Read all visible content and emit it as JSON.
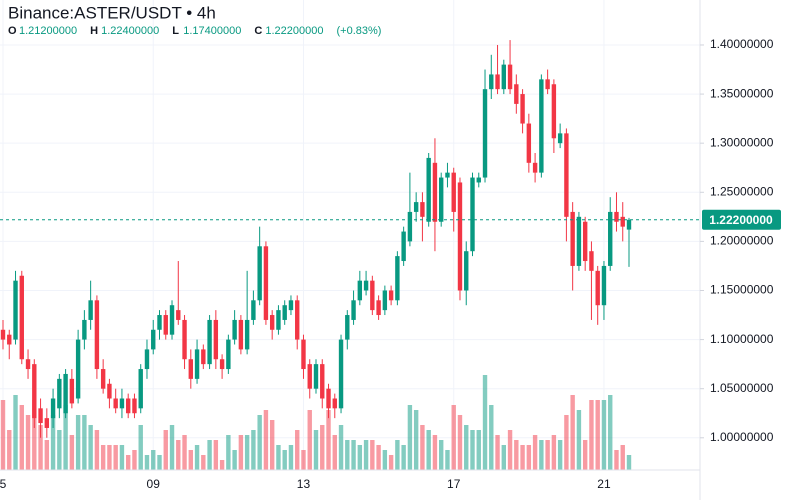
{
  "chart_data": {
    "type": "candlestick",
    "title": "Binance:ASTER/USDT • 4h",
    "ohlc_header": [
      {
        "key": "O",
        "value": "1.21200000"
      },
      {
        "key": "H",
        "value": "1.22400000"
      },
      {
        "key": "L",
        "value": "1.17400000"
      },
      {
        "key": "C",
        "value": "1.22200000"
      }
    ],
    "change": "(+0.83%)",
    "categories": [
      "5",
      null,
      null,
      null,
      null,
      null,
      null,
      null,
      null,
      null,
      null,
      null,
      null,
      null,
      null,
      null,
      null,
      null,
      null,
      null,
      null,
      null,
      null,
      null,
      "09",
      null,
      null,
      null,
      null,
      null,
      null,
      null,
      null,
      null,
      null,
      null,
      null,
      null,
      null,
      null,
      null,
      null,
      null,
      null,
      null,
      null,
      null,
      null,
      "13",
      null,
      null,
      null,
      null,
      null,
      null,
      null,
      null,
      null,
      null,
      null,
      null,
      null,
      null,
      null,
      null,
      null,
      null,
      null,
      null,
      null,
      null,
      null,
      "17",
      null,
      null,
      null,
      null,
      null,
      null,
      null,
      null,
      null,
      null,
      null,
      null,
      null,
      null,
      null,
      null,
      null,
      null,
      null,
      null,
      null,
      null,
      null,
      "21",
      null,
      null,
      null,
      null
    ],
    "open": [
      1.11,
      1.105,
      1.1,
      1.165,
      1.08,
      1.075,
      1.03,
      1.02,
      1.02,
      1.03,
      1.025,
      1.06,
      1.04,
      1.1,
      1.12,
      1.14,
      1.07,
      1.055,
      1.04,
      1.03,
      1.04,
      1.04,
      1.03,
      1.07,
      1.09,
      1.11,
      1.125,
      1.105,
      1.13,
      1.12,
      1.08,
      1.06,
      1.09,
      1.075,
      1.12,
      1.08,
      1.07,
      1.1,
      1.12,
      1.09,
      1.12,
      1.14,
      1.195,
      1.125,
      1.11,
      1.12,
      1.13,
      1.14,
      1.1,
      1.075,
      1.05,
      1.075,
      1.05,
      1.04,
      1.03,
      1.1,
      1.12,
      1.14,
      1.15,
      1.16,
      1.14,
      1.13,
      1.15,
      1.14,
      1.18,
      1.2,
      1.23,
      1.24,
      1.22,
      1.28,
      1.22,
      1.265,
      1.27,
      1.26,
      1.15,
      1.19,
      1.26,
      1.265,
      1.355,
      1.37,
      1.355,
      1.38,
      1.36,
      1.35,
      1.32,
      1.28,
      1.27,
      1.365,
      1.36,
      1.3,
      1.31,
      1.23,
      1.175,
      1.22,
      1.19,
      1.17,
      1.135,
      1.175,
      1.23,
      1.225,
      1.212
    ],
    "high": [
      1.12,
      1.11,
      1.17,
      1.17,
      1.09,
      1.08,
      1.04,
      1.03,
      1.05,
      1.065,
      1.07,
      1.07,
      1.11,
      1.13,
      1.16,
      1.145,
      1.08,
      1.06,
      1.05,
      1.05,
      1.045,
      1.045,
      1.075,
      1.1,
      1.12,
      1.13,
      1.13,
      1.14,
      1.18,
      1.125,
      1.09,
      1.1,
      1.095,
      1.125,
      1.13,
      1.085,
      1.105,
      1.13,
      1.125,
      1.17,
      1.15,
      1.215,
      1.2,
      1.13,
      1.135,
      1.14,
      1.145,
      1.145,
      1.105,
      1.08,
      1.08,
      1.08,
      1.055,
      1.045,
      1.105,
      1.13,
      1.15,
      1.17,
      1.17,
      1.165,
      1.145,
      1.155,
      1.155,
      1.19,
      1.215,
      1.27,
      1.25,
      1.25,
      1.29,
      1.305,
      1.27,
      1.28,
      1.275,
      1.265,
      1.2,
      1.27,
      1.27,
      1.375,
      1.39,
      1.4,
      1.385,
      1.405,
      1.37,
      1.355,
      1.33,
      1.29,
      1.37,
      1.375,
      1.365,
      1.32,
      1.315,
      1.24,
      1.23,
      1.225,
      1.2,
      1.175,
      1.18,
      1.245,
      1.25,
      1.24,
      1.224
    ],
    "low": [
      1.09,
      1.08,
      1.095,
      1.075,
      1.06,
      1.01,
      1.0,
      1.0,
      1.01,
      1.02,
      1.02,
      1.03,
      1.035,
      1.09,
      1.11,
      1.06,
      1.045,
      1.03,
      1.025,
      1.02,
      1.02,
      1.02,
      1.025,
      1.06,
      1.085,
      1.1,
      1.1,
      1.1,
      1.115,
      1.07,
      1.05,
      1.055,
      1.07,
      1.07,
      1.07,
      1.06,
      1.065,
      1.095,
      1.085,
      1.085,
      1.115,
      1.135,
      1.115,
      1.1,
      1.105,
      1.115,
      1.125,
      1.09,
      1.06,
      1.04,
      1.045,
      1.03,
      1.02,
      1.02,
      1.025,
      1.09,
      1.115,
      1.135,
      1.145,
      1.125,
      1.12,
      1.125,
      1.135,
      1.135,
      1.175,
      1.195,
      1.22,
      1.2,
      1.215,
      1.19,
      1.215,
      1.255,
      1.21,
      1.14,
      1.135,
      1.185,
      1.255,
      1.26,
      1.345,
      1.35,
      1.35,
      1.35,
      1.33,
      1.31,
      1.27,
      1.26,
      1.265,
      1.35,
      1.29,
      1.295,
      1.2,
      1.15,
      1.17,
      1.17,
      1.12,
      1.115,
      1.12,
      1.17,
      1.21,
      1.2,
      1.174
    ],
    "close": [
      1.1,
      1.095,
      1.16,
      1.08,
      1.07,
      1.02,
      1.015,
      1.01,
      1.04,
      1.06,
      1.065,
      1.035,
      1.1,
      1.12,
      1.14,
      1.07,
      1.05,
      1.04,
      1.03,
      1.04,
      1.025,
      1.025,
      1.07,
      1.09,
      1.11,
      1.125,
      1.105,
      1.135,
      1.12,
      1.08,
      1.06,
      1.09,
      1.075,
      1.12,
      1.08,
      1.07,
      1.1,
      1.12,
      1.09,
      1.12,
      1.14,
      1.195,
      1.12,
      1.11,
      1.13,
      1.135,
      1.14,
      1.1,
      1.07,
      1.05,
      1.075,
      1.04,
      1.03,
      1.03,
      1.1,
      1.125,
      1.14,
      1.16,
      1.16,
      1.13,
      1.125,
      1.15,
      1.14,
      1.185,
      1.21,
      1.23,
      1.24,
      1.225,
      1.285,
      1.22,
      1.265,
      1.27,
      1.23,
      1.15,
      1.19,
      1.265,
      1.265,
      1.355,
      1.37,
      1.355,
      1.38,
      1.355,
      1.34,
      1.32,
      1.28,
      1.27,
      1.365,
      1.355,
      1.305,
      1.31,
      1.225,
      1.175,
      1.225,
      1.18,
      1.17,
      1.135,
      1.175,
      1.23,
      1.22,
      1.215,
      1.222
    ],
    "volume": [
      70,
      40,
      75,
      65,
      55,
      70,
      45,
      30,
      55,
      40,
      65,
      35,
      55,
      55,
      45,
      40,
      25,
      25,
      25,
      25,
      15,
      20,
      45,
      15,
      20,
      15,
      40,
      45,
      30,
      35,
      20,
      25,
      15,
      30,
      30,
      10,
      35,
      20,
      35,
      35,
      40,
      55,
      60,
      50,
      25,
      20,
      25,
      40,
      20,
      60,
      40,
      45,
      60,
      35,
      45,
      30,
      30,
      25,
      30,
      30,
      25,
      20,
      15,
      30,
      25,
      65,
      60,
      45,
      40,
      35,
      30,
      20,
      65,
      55,
      45,
      40,
      40,
      95,
      65,
      35,
      25,
      40,
      30,
      25,
      25,
      35,
      30,
      30,
      35,
      30,
      55,
      75,
      60,
      30,
      70,
      70,
      70,
      75,
      20,
      25,
      15
    ],
    "volume_lim": [
      0,
      100
    ],
    "up_color": "#089981",
    "down_color": "#f23645",
    "ylim": [
      0.9672,
      1.4458
    ],
    "yticks": [
      {
        "value": 1.0,
        "label": "1.00000000"
      },
      {
        "value": 1.05,
        "label": "1.05000000"
      },
      {
        "value": 1.1,
        "label": "1.10000000"
      },
      {
        "value": 1.15,
        "label": "1.15000000"
      },
      {
        "value": 1.2,
        "label": "1.20000000"
      },
      {
        "value": 1.25,
        "label": "1.25000000"
      },
      {
        "value": 1.3,
        "label": "1.30000000"
      },
      {
        "value": 1.35,
        "label": "1.35000000"
      },
      {
        "value": 1.4,
        "label": "1.40000000"
      }
    ],
    "last_price": {
      "value": 1.222,
      "label": "1.22200000"
    },
    "grid": true
  }
}
